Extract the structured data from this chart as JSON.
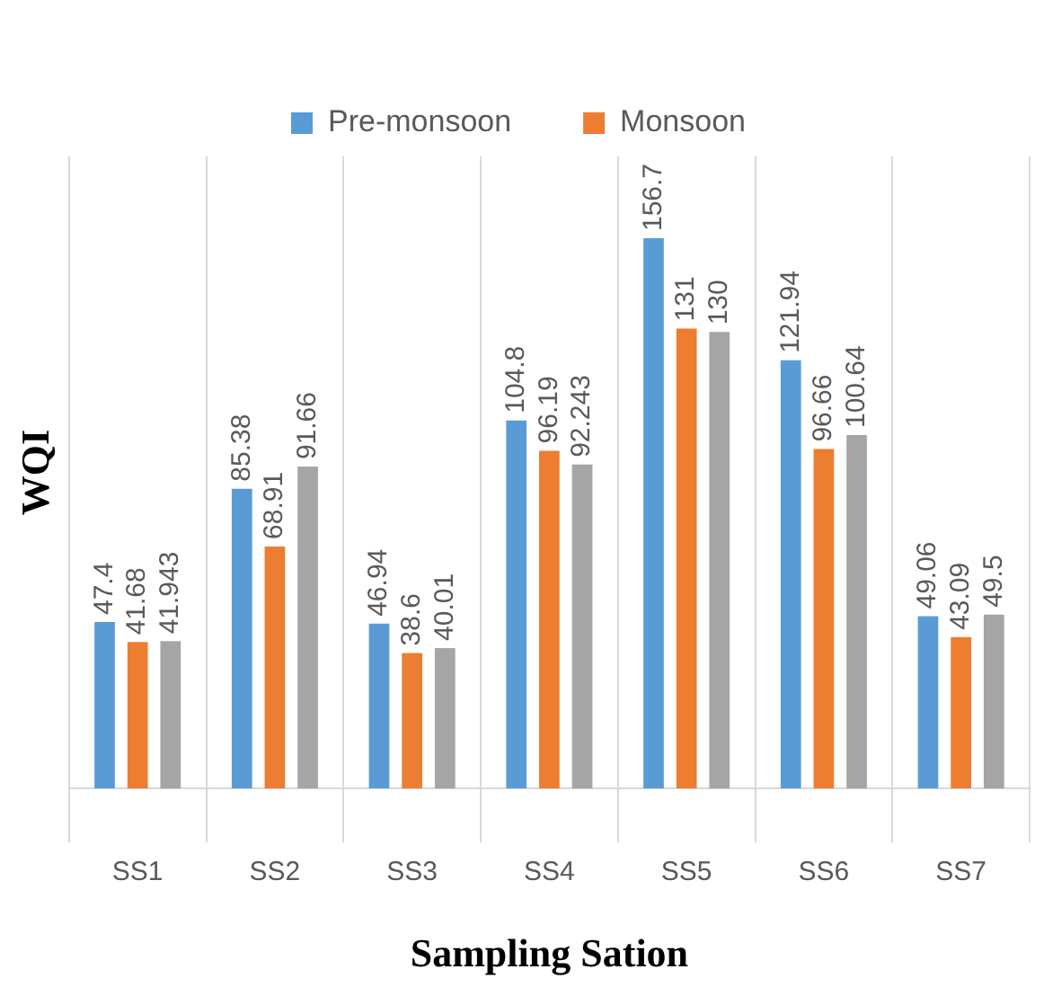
{
  "chart_data": {
    "type": "bar",
    "xlabel": "Sampling Sation",
    "ylabel": "WQI",
    "categories": [
      "SS1",
      "SS2",
      "SS3",
      "SS4",
      "SS5",
      "SS6",
      "SS7"
    ],
    "series": [
      {
        "name": "Pre-monsoon",
        "color": "#5b9bd5",
        "values": [
          47.4,
          85.38,
          46.94,
          104.8,
          156.7,
          121.94,
          49.06
        ]
      },
      {
        "name": "Monsoon",
        "color": "#ed7d31",
        "values": [
          41.68,
          68.91,
          38.6,
          96.19,
          131,
          96.66,
          43.09
        ]
      },
      {
        "color": "#a5a5a5",
        "values": [
          41.943,
          91.66,
          40.01,
          92.243,
          130,
          100.64,
          49.5
        ]
      }
    ],
    "ylim": [
      0,
      180
    ],
    "data_labels": true,
    "grid": "x",
    "legend": "top",
    "tick_labels": "x"
  }
}
